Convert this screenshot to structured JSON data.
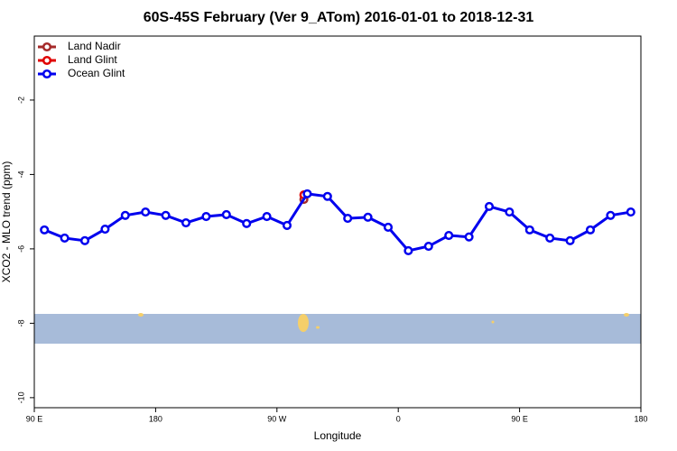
{
  "chart_data": {
    "type": "line",
    "title": "60S-45S February (Ver 9_ATom)   2016-01-01 to 2018-12-31",
    "x_label": "Longitude",
    "y_label": "XCO2 - MLO trend (ppm)",
    "xlim": [
      90,
      540
    ],
    "ylim": [
      -10.27,
      -0.28
    ],
    "xticks": [
      {
        "value": 90,
        "label": "90 E"
      },
      180,
      {
        "value": 270,
        "label": "90 W"
      },
      {
        "value": 360,
        "label": "0"
      },
      {
        "value": 450,
        "label": "90 E"
      },
      {
        "value": 540,
        "label": "180"
      }
    ],
    "yticks": [
      -2,
      -4,
      -6,
      -8,
      -10
    ],
    "legend": "top-left",
    "series": [
      {
        "name": "Land Nadir",
        "color": "#a52a2a",
        "x": [
          290
        ],
        "values": [
          -4.67
        ]
      },
      {
        "name": "Land Glint",
        "color": "#e00000",
        "x": [
          290
        ],
        "values": [
          -4.55
        ]
      },
      {
        "name": "Ocean Glint",
        "color": "#0000ee",
        "x": [
          97.5,
          112.5,
          127.5,
          142.5,
          157.5,
          172.5,
          187.5,
          202.5,
          217.5,
          232.5,
          247.5,
          262.5,
          277.5,
          292.5,
          307.5,
          322.5,
          337.5,
          352.5,
          367.5,
          382.5,
          397.5,
          412.5,
          427.5,
          442.5,
          457.5,
          472.5,
          487.5,
          502.5,
          517.5,
          532.5
        ],
        "values": [
          -5.49,
          -5.71,
          -5.78,
          -5.47,
          -5.1,
          -5.01,
          -5.1,
          -5.3,
          -5.13,
          -5.08,
          -5.32,
          -5.13,
          -5.37,
          -4.52,
          -4.59,
          -5.18,
          -5.15,
          -5.42,
          -6.05,
          -5.93,
          -5.64,
          -5.68,
          -4.86,
          -5.01,
          -5.49,
          -5.71,
          -5.78,
          -5.49,
          -5.1,
          -5.01
        ]
      }
    ]
  }
}
